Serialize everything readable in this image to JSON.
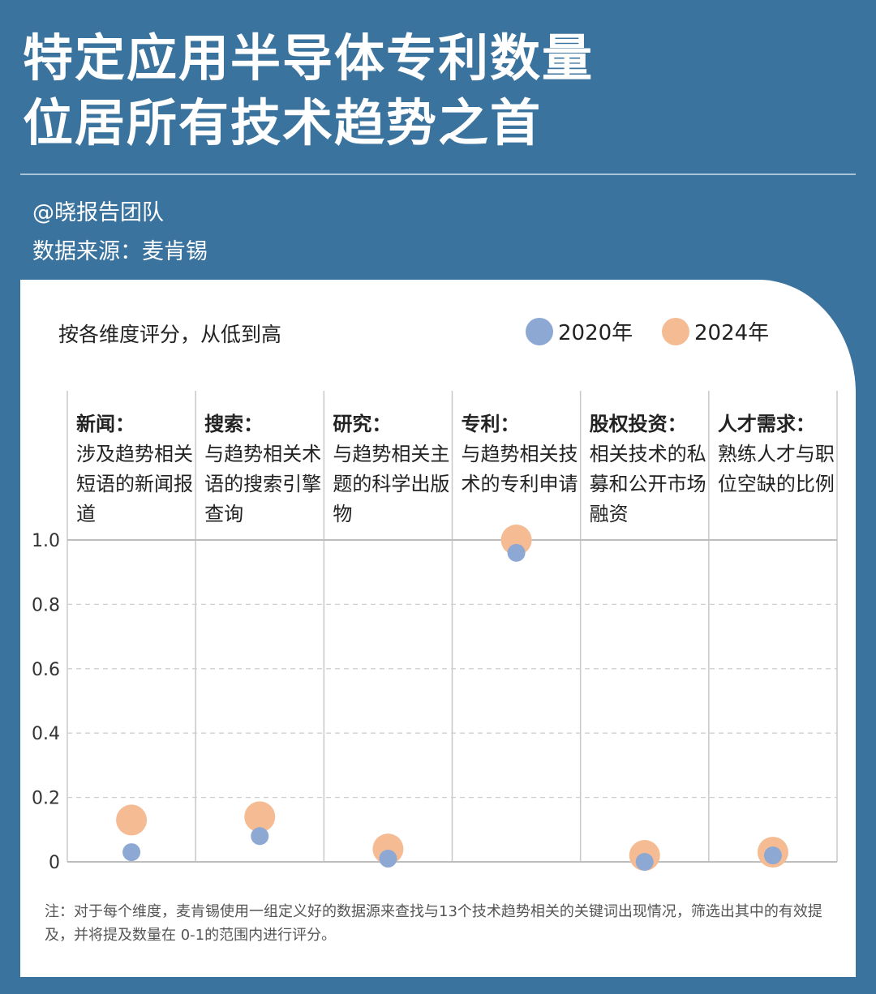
{
  "header": {
    "title_lines": [
      "特定应用半导体专利数量",
      "位居所有技术趋势之首"
    ],
    "author": "@晓报告团队",
    "source": "数据来源：麦肯锡"
  },
  "chart_data": {
    "type": "scatter",
    "subtitle": "按各维度评分，从低到高",
    "categories": [
      {
        "title": "新闻：",
        "desc": "涉及趋势相关短语的新闻报道"
      },
      {
        "title": "搜索：",
        "desc": "与趋势相关术语的搜索引擎查询"
      },
      {
        "title": "研究：",
        "desc": "与趋势相关主题的科学出版物"
      },
      {
        "title": "专利：",
        "desc": "与趋势相关技术的专利申请"
      },
      {
        "title": "股权投资：",
        "desc": "相关技术的私募和公开市场融资"
      },
      {
        "title": "人才需求：",
        "desc": "熟练人才与职位空缺的比例"
      }
    ],
    "series": [
      {
        "name": "2020年",
        "color": "#8ea8d4",
        "values": [
          0.03,
          0.08,
          0.01,
          0.96,
          0.0,
          0.02
        ]
      },
      {
        "name": "2024年",
        "color": "#f5bb93",
        "values": [
          0.13,
          0.14,
          0.04,
          1.0,
          0.02,
          0.03
        ]
      }
    ],
    "yticks": [
      "0",
      "0.2",
      "0.4",
      "0.6",
      "0.8",
      "1.0"
    ],
    "ylim": [
      0,
      1.0
    ],
    "grid": true,
    "legend": "top-right"
  },
  "note": "注：对于每个维度，麦肯锡使用一组定义好的数据源来查找与13个技术趋势相关的关键词出现情况，筛选出其中的有效提及，并将提及数量在 0-1的范围内进行评分。"
}
